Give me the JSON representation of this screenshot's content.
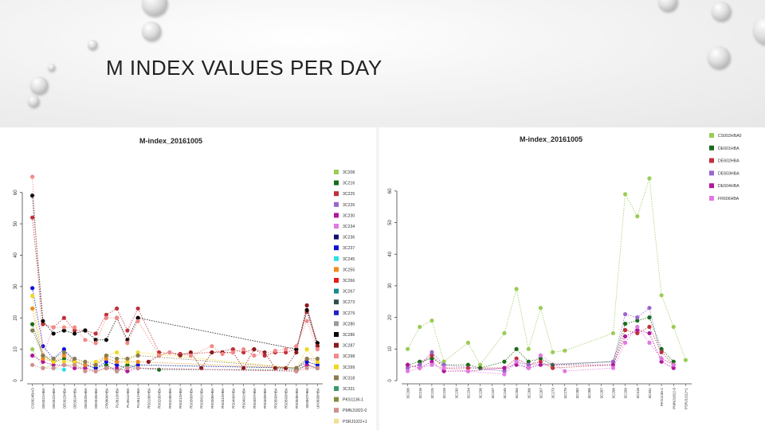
{
  "slide": {
    "title": "M INDEX VALUES PER DAY"
  },
  "legend_names": [
    "3C208",
    "3C216",
    "3C225",
    "3C226",
    "3C230",
    "3C234",
    "3C236",
    "3C237",
    "3C245",
    "3C255",
    "3C266",
    "3C267",
    "3C273",
    "3C279",
    "3C280",
    "3C286",
    "3C287",
    "3C298",
    "3C299",
    "3C318",
    "3C331",
    "PKS1136-1",
    "PMNJ1822-0",
    "PSRJ1022+1"
  ],
  "colors": [
    "#9acd55",
    "#1a6b1a",
    "#c0303a",
    "#9966cc",
    "#b0179a",
    "#e07ae0",
    "#101070",
    "#1010d8",
    "#2de0e8",
    "#f08a1a",
    "#e81b1b",
    "#1a8a8a",
    "#2f4f4f",
    "#2020c8",
    "#9a9a9a",
    "#050505",
    "#8b1a1a",
    "#f08a8a",
    "#f0d820",
    "#8a7a50",
    "#3a9a6a",
    "#8a8a40",
    "#d0908a",
    "#f0e090"
  ],
  "chart_data": [
    {
      "type": "scatter",
      "title": "M-index_20161005",
      "xlabel": "",
      "ylabel": "",
      "ylim": [
        0,
        65
      ],
      "yticks": [
        0,
        10,
        20,
        30,
        40,
        50,
        60
      ],
      "grid": false,
      "legend_position": "right",
      "categories": [
        "CS0024BAO",
        "DE0021HBA",
        "DE0022HBA",
        "DE0023HBA",
        "DE0024HBA",
        "DE0025HBA",
        "DE0026HBA",
        "FR0606HBA",
        "PL0610HBA",
        "PL0611HBA",
        "PL0612HBA",
        "RS0106HBA",
        "RS0205HBA",
        "RS0206HBA",
        "RS0210HBA",
        "RS0300HBA",
        "RS0301HBA",
        "RS0306HBA",
        "RS0310HBA",
        "RS0400HBA",
        "RS0401HBA",
        "RS0407HBA",
        "RS0409HBA",
        "RS0500HBA",
        "RS0503HBA",
        "RS0506HBA",
        "SE0607HBA",
        "UK0608HBA"
      ],
      "series": [
        {
          "name": "3C208",
          "values": [
            10,
            4,
            5,
            5,
            5,
            4,
            3,
            4,
            4,
            5,
            5,
            null,
            null,
            null,
            null,
            null,
            null,
            null,
            null,
            null,
            null,
            null,
            null,
            null,
            null,
            4,
            6,
            5
          ]
        },
        {
          "name": "3C216",
          "values": [
            18,
            8,
            6,
            7,
            6,
            5,
            4,
            5,
            3,
            5,
            4,
            null,
            3.5,
            null,
            null,
            null,
            null,
            null,
            null,
            null,
            null,
            null,
            null,
            null,
            null,
            3.5,
            5,
            4
          ]
        },
        {
          "name": "3C225",
          "values": [
            52,
            18,
            17,
            20,
            16,
            16,
            15,
            21,
            23,
            16,
            23,
            null,
            9,
            null,
            8.5,
            null,
            null,
            9,
            null,
            10,
            9,
            10,
            8,
            9,
            9,
            10,
            22,
            11
          ]
        },
        {
          "name": "3C230",
          "values": [
            8,
            6,
            5,
            5,
            4,
            4,
            3,
            4,
            4,
            3,
            4,
            null,
            null,
            null,
            null,
            null,
            null,
            null,
            null,
            null,
            null,
            null,
            null,
            null,
            null,
            3,
            5,
            4
          ]
        },
        {
          "name": "3C237",
          "values": [
            29.5,
            11,
            7,
            10,
            6,
            5,
            4,
            6,
            5,
            4,
            5,
            null,
            null,
            null,
            null,
            null,
            null,
            null,
            null,
            null,
            null,
            null,
            null,
            null,
            null,
            4,
            6,
            5
          ]
        },
        {
          "name": "3C245",
          "values": [
            null,
            null,
            4,
            3.5,
            null,
            null,
            null,
            null,
            null,
            null,
            null,
            null,
            null,
            null,
            null,
            null,
            null,
            null,
            null,
            null,
            null,
            null,
            null,
            null,
            null,
            null,
            null,
            null
          ]
        },
        {
          "name": "3C255",
          "values": [
            23,
            7,
            6,
            8,
            6,
            5,
            5,
            7,
            6,
            6,
            6,
            null,
            null,
            null,
            null,
            null,
            null,
            null,
            null,
            null,
            null,
            null,
            null,
            null,
            null,
            4,
            7,
            6
          ]
        },
        {
          "name": "3C286",
          "values": [
            59,
            19,
            15,
            16,
            15,
            16,
            13,
            13,
            20,
            13,
            20,
            null,
            null,
            null,
            null,
            null,
            null,
            null,
            null,
            null,
            null,
            null,
            null,
            null,
            null,
            10,
            22.5,
            12
          ]
        },
        {
          "name": "3C287",
          "values": [
            null,
            null,
            null,
            null,
            null,
            null,
            null,
            null,
            null,
            null,
            null,
            6,
            8,
            9,
            8,
            9,
            4,
            9,
            9,
            9,
            4,
            10,
            9,
            4,
            4,
            9,
            24,
            11
          ]
        },
        {
          "name": "3C298",
          "values": [
            65,
            8,
            17,
            17,
            17,
            13,
            12,
            20,
            20,
            12,
            19,
            null,
            8,
            9,
            null,
            8,
            null,
            11,
            8.5,
            9,
            10,
            8,
            null,
            9.5,
            10,
            11,
            19,
            10
          ]
        },
        {
          "name": "3C299",
          "values": [
            27,
            8,
            6,
            6,
            6,
            6,
            6,
            8,
            9,
            6,
            9,
            null,
            null,
            null,
            null,
            null,
            null,
            null,
            null,
            null,
            null,
            null,
            null,
            null,
            null,
            4,
            10,
            6
          ]
        },
        {
          "name": "3C318",
          "values": [
            16,
            8,
            7,
            9,
            7,
            6,
            5,
            8,
            7,
            7,
            8,
            null,
            null,
            null,
            null,
            null,
            null,
            null,
            null,
            null,
            null,
            null,
            null,
            null,
            null,
            4,
            7,
            7
          ]
        },
        {
          "name": "PMNJ1822-0",
          "values": [
            5,
            4,
            4,
            5,
            5,
            3,
            3,
            4,
            3,
            4,
            4,
            null,
            null,
            null,
            null,
            null,
            null,
            null,
            null,
            null,
            null,
            null,
            null,
            null,
            null,
            3,
            4,
            4
          ]
        }
      ]
    },
    {
      "type": "scatter",
      "title": "M-index_20161005",
      "xlabel": "",
      "ylabel": "",
      "ylim": [
        0,
        65
      ],
      "yticks": [
        0,
        10,
        20,
        30,
        40,
        50,
        60
      ],
      "grid": false,
      "legend_position": "right",
      "categories": [
        "3C208",
        "3C216",
        "3C225",
        "3C226",
        "3C230",
        "3C234",
        "3C236",
        "3C237",
        "3C245",
        "3C255",
        "3C266",
        "3C267",
        "3C273",
        "3C279",
        "3C280",
        "3C286",
        "3C287",
        "3C298",
        "3C299",
        "3C318",
        "3C331",
        "PKS1136-1",
        "PMNJ1822-0",
        "PSRJ1022+1"
      ],
      "series": [
        {
          "name": "CS002HBA0",
          "values": [
            10,
            17,
            19,
            6,
            null,
            12,
            5,
            null,
            15,
            29,
            10,
            23,
            9,
            9.5,
            null,
            null,
            null,
            15,
            59,
            52,
            64,
            27,
            17,
            6.5
          ]
        },
        {
          "name": "DE601HBA",
          "values": [
            5,
            6,
            7,
            5,
            null,
            5,
            4,
            null,
            6,
            10,
            6,
            7,
            5,
            null,
            null,
            null,
            null,
            6,
            18,
            19,
            20,
            10,
            6,
            null
          ]
        },
        {
          "name": "DE602HBA",
          "values": [
            4,
            5,
            8,
            4,
            null,
            4,
            null,
            null,
            4,
            7,
            5,
            6,
            4,
            null,
            null,
            null,
            null,
            5,
            16,
            15,
            17,
            9,
            5,
            null
          ]
        },
        {
          "name": "DE603HBA",
          "values": [
            4,
            5,
            9,
            5,
            null,
            null,
            null,
            null,
            3,
            6,
            5,
            null,
            null,
            null,
            null,
            null,
            null,
            6,
            21,
            20,
            23,
            7,
            5,
            null
          ]
        },
        {
          "name": "DE604HBA",
          "values": [
            5,
            4,
            6,
            3,
            null,
            3,
            null,
            null,
            4,
            5,
            4,
            5,
            null,
            null,
            null,
            null,
            null,
            5,
            14,
            16,
            15,
            6,
            4,
            null
          ]
        },
        {
          "name": "FR606HBA",
          "values": [
            3,
            4,
            5,
            4,
            null,
            3,
            null,
            null,
            2,
            6,
            4,
            8,
            null,
            3,
            null,
            null,
            null,
            4,
            12,
            17,
            12,
            7,
            5,
            null
          ]
        }
      ]
    }
  ]
}
